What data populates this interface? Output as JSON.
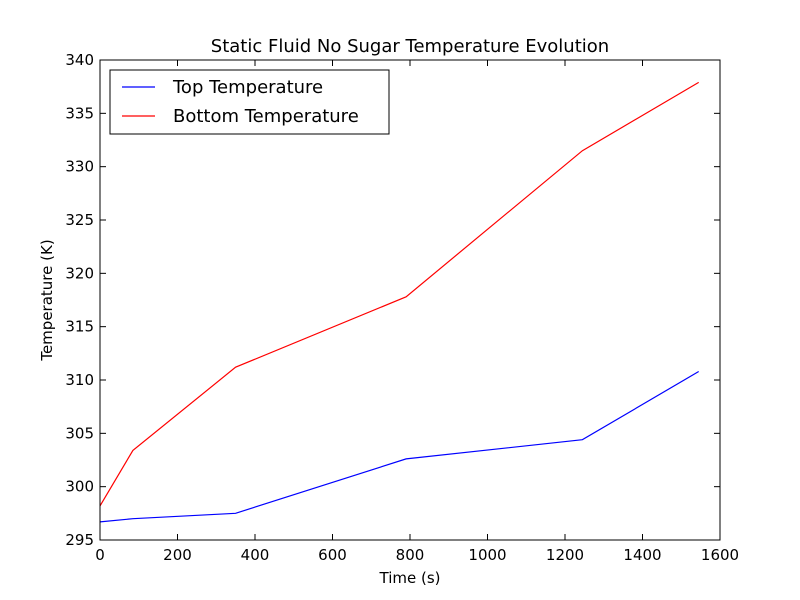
{
  "chart_data": {
    "type": "line",
    "title": "Static Fluid No Sugar Temperature Evolution",
    "xlabel": "Time (s)",
    "ylabel": "Temperature (K)",
    "xlim": [
      0,
      1600
    ],
    "ylim": [
      295,
      340
    ],
    "xticks": [
      0,
      200,
      400,
      600,
      800,
      1000,
      1200,
      1400,
      1600
    ],
    "yticks": [
      295,
      300,
      305,
      310,
      315,
      320,
      325,
      330,
      335,
      340
    ],
    "grid": false,
    "legend_position": "top-left",
    "series": [
      {
        "name": "Top Temperature",
        "color": "#0000ff",
        "x": [
          0,
          85,
          350,
          790,
          1245,
          1545
        ],
        "y": [
          296.7,
          297.0,
          297.5,
          302.6,
          304.4,
          310.8
        ]
      },
      {
        "name": "Bottom Temperature",
        "color": "#ff0000",
        "x": [
          0,
          85,
          350,
          790,
          1245,
          1545
        ],
        "y": [
          298.2,
          303.4,
          311.2,
          317.8,
          331.5,
          337.9
        ]
      }
    ]
  }
}
